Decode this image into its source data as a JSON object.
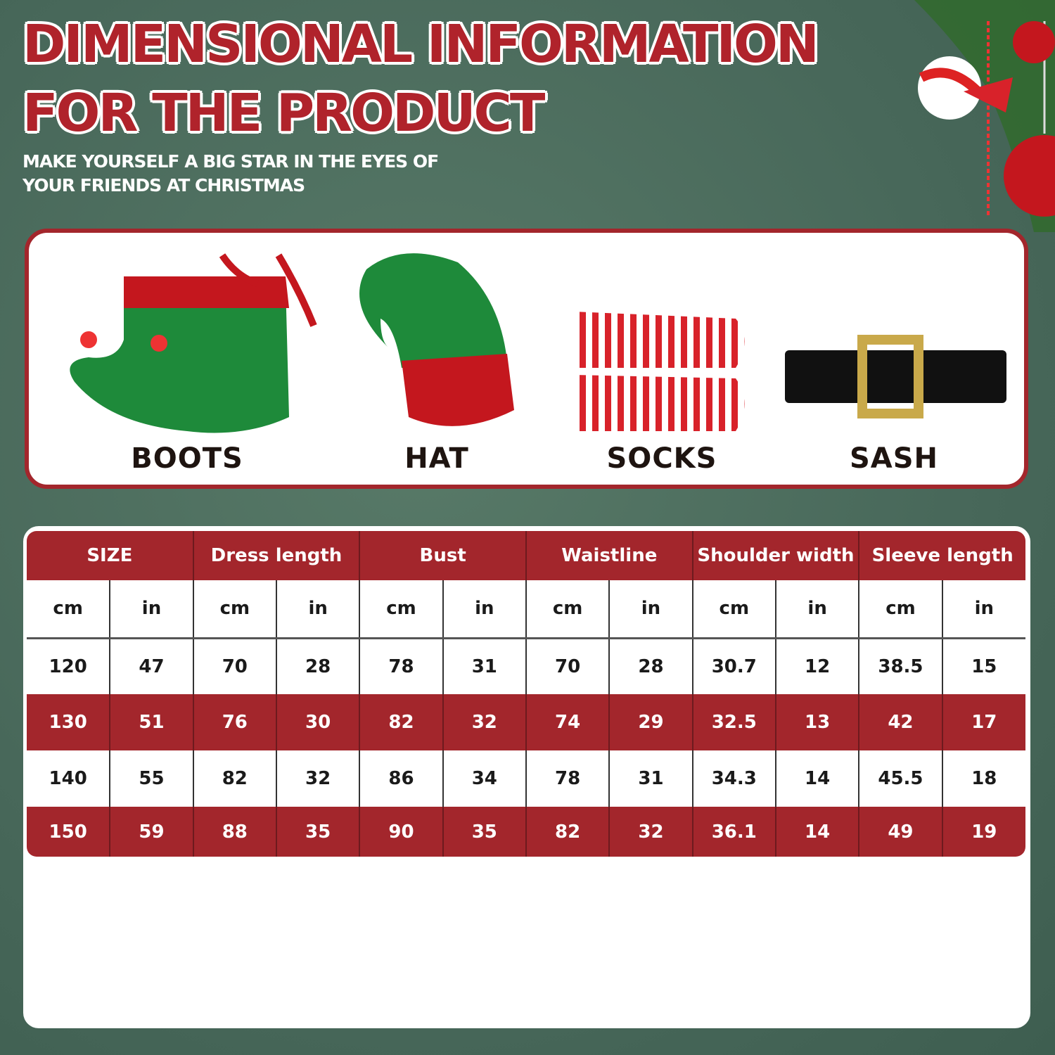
{
  "title": {
    "line1": "DIMENSIONAL INFORMATION",
    "line2": "FOR THE PRODUCT"
  },
  "subtitle": {
    "line1": "MAKE YOURSELF A BIG STAR IN THE EYES OF",
    "line2": "YOUR FRIENDS AT CHRISTMAS"
  },
  "colors": {
    "accent_red": "#a3262c",
    "background_green": "#4a6b5a",
    "elf_green": "#1e8a3a"
  },
  "products": [
    {
      "label": "BOOTS",
      "icon": "elf-boots"
    },
    {
      "label": "HAT",
      "icon": "elf-hat"
    },
    {
      "label": "SOCKS",
      "icon": "striped-socks"
    },
    {
      "label": "SASH",
      "icon": "belt-buckle"
    }
  ],
  "table": {
    "headers": [
      "SIZE",
      "Dress length",
      "Bust",
      "Waistline",
      "Shoulder width",
      "Sleeve length"
    ],
    "units": [
      "cm",
      "in",
      "cm",
      "in",
      "cm",
      "in",
      "cm",
      "in",
      "cm",
      "in",
      "cm",
      "in"
    ],
    "rows": [
      [
        "120",
        "47",
        "70",
        "28",
        "78",
        "31",
        "70",
        "28",
        "30.7",
        "12",
        "38.5",
        "15"
      ],
      [
        "130",
        "51",
        "76",
        "30",
        "82",
        "32",
        "74",
        "29",
        "32.5",
        "13",
        "42",
        "17"
      ],
      [
        "140",
        "55",
        "82",
        "32",
        "86",
        "34",
        "78",
        "31",
        "34.3",
        "14",
        "45.5",
        "18"
      ],
      [
        "150",
        "59",
        "88",
        "35",
        "90",
        "35",
        "82",
        "32",
        "36.1",
        "14",
        "49",
        "19"
      ]
    ]
  }
}
